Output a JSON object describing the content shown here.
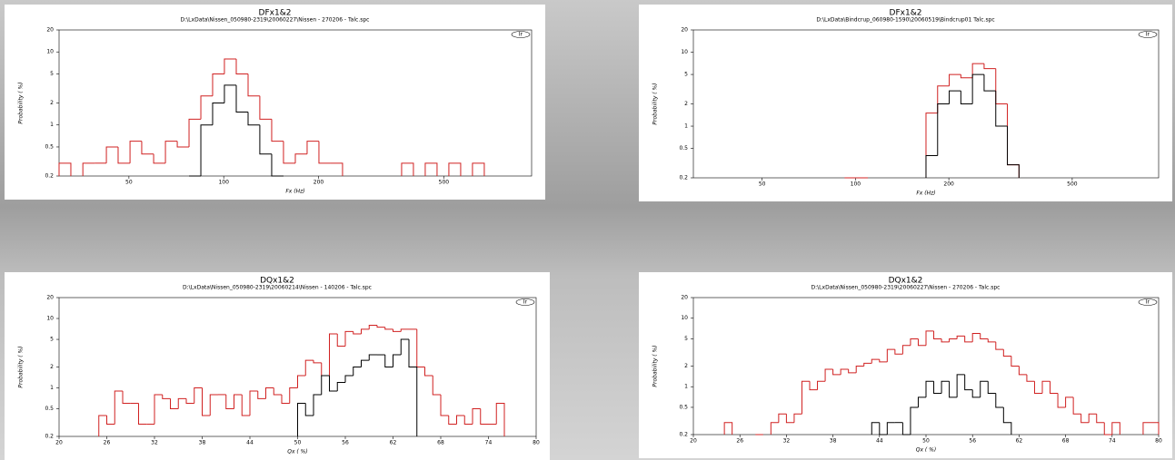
{
  "chart_data": [
    {
      "type": "histogram",
      "title": "DFx1&2",
      "subtitle": "D:\\LxData\\Nissen_050980-2319\\20060227\\Nissen - 270206 - Talc.spc",
      "badge": "Ir",
      "xlabel": "Fx (Hz)",
      "ylabel": "Probability ( %)",
      "xscale": "log",
      "yscale": "log",
      "xlim": [
        30,
        950
      ],
      "ylim": [
        0.2,
        20
      ],
      "xticks": [
        50,
        100,
        200,
        500
      ],
      "yticks": [
        0.2,
        0.5,
        1,
        2,
        5,
        10,
        20
      ],
      "bins": [
        30,
        32.7,
        35.7,
        38.9,
        42.4,
        46.2,
        50.4,
        54.9,
        59.9,
        65.3,
        71.2,
        77.6,
        84.6,
        92.2,
        100.5,
        109.6,
        119.5,
        130.2,
        142,
        154.8,
        168.8,
        184,
        200.6,
        218.7,
        238.4,
        259.9,
        283.4,
        308.9,
        336.8,
        367.2,
        400.3,
        436.4,
        475.8,
        518.7,
        565.5,
        616.5,
        672.1,
        732.7,
        798.8,
        870.9,
        949.4
      ],
      "series": [
        {
          "color": "#d02020",
          "values": [
            0.3,
            null,
            0.3,
            0.3,
            0.5,
            0.3,
            0.6,
            0.4,
            0.3,
            0.6,
            0.5,
            1.2,
            2.5,
            5,
            8,
            5,
            2.5,
            1.2,
            0.6,
            0.3,
            0.4,
            0.6,
            0.3,
            0.3,
            null,
            null,
            null,
            null,
            null,
            0.3,
            null,
            0.3,
            null,
            0.3,
            null,
            0.3,
            null,
            null,
            null,
            null
          ]
        },
        {
          "color": "#000000",
          "values": [
            null,
            null,
            null,
            null,
            null,
            null,
            null,
            null,
            null,
            null,
            null,
            0.2,
            1,
            2,
            3.5,
            1.5,
            1,
            0.4,
            0.2,
            null,
            null,
            null,
            null,
            null,
            null,
            null,
            null,
            null,
            null,
            null,
            null,
            null,
            null,
            null,
            null,
            null,
            null,
            null,
            null,
            null
          ]
        }
      ]
    },
    {
      "type": "histogram",
      "title": "DFx1&2",
      "subtitle": "D:\\LxData\\Bindcrup_060980-1590\\20060519\\Bindcrup01 Talc.spc",
      "badge": "Ir",
      "xlabel": "Fx (Hz)",
      "ylabel": "Probability ( %)",
      "xscale": "log",
      "yscale": "log",
      "xlim": [
        30,
        950
      ],
      "ylim": [
        0.2,
        20
      ],
      "xticks": [
        50,
        100,
        200,
        500
      ],
      "yticks": [
        0.2,
        0.5,
        1,
        2,
        5,
        10,
        20
      ],
      "bins": [
        30,
        32.7,
        35.7,
        38.9,
        42.4,
        46.2,
        50.4,
        54.9,
        59.9,
        65.3,
        71.2,
        77.6,
        84.6,
        92.2,
        100.5,
        109.6,
        119.5,
        130.2,
        142,
        154.8,
        168.8,
        184,
        200.6,
        218.7,
        238.4,
        259.9,
        283.4,
        308.9,
        336.8,
        367.2,
        400.3,
        436.4,
        475.8,
        518.7,
        565.5,
        616.5,
        672.1,
        732.7,
        798.8,
        870.9,
        949.4
      ],
      "series": [
        {
          "color": "#d02020",
          "values": [
            null,
            null,
            null,
            null,
            null,
            null,
            null,
            null,
            null,
            null,
            null,
            null,
            null,
            0.2,
            0.2,
            null,
            null,
            null,
            null,
            null,
            1.5,
            3.5,
            5,
            4.5,
            7,
            6,
            2,
            0.3,
            null,
            null,
            null,
            null,
            null,
            null,
            null,
            null,
            null,
            null,
            null,
            null
          ]
        },
        {
          "color": "#000000",
          "values": [
            null,
            null,
            null,
            null,
            null,
            null,
            null,
            null,
            null,
            null,
            null,
            null,
            null,
            null,
            null,
            null,
            null,
            null,
            null,
            null,
            0.4,
            2,
            3,
            2,
            5,
            3,
            1,
            0.3,
            null,
            null,
            null,
            null,
            null,
            null,
            null,
            null,
            null,
            null,
            null,
            null
          ]
        }
      ]
    },
    {
      "type": "histogram",
      "title": "DQx1&2",
      "subtitle": "D:\\LxData\\Nissen_050980-2319\\20060214\\Nissen - 140206 - Talc.spc",
      "badge": "Ir",
      "xlabel": "Qx ( %)",
      "ylabel": "Probability ( %)",
      "xscale": "linear",
      "yscale": "log",
      "xlim": [
        20,
        80
      ],
      "ylim": [
        0.2,
        20
      ],
      "xticks": [
        20,
        26,
        32,
        38,
        44,
        50,
        56,
        62,
        68,
        74,
        80
      ],
      "yticks": [
        0.2,
        0.5,
        1,
        2,
        5,
        10,
        20
      ],
      "bins": [
        20,
        21,
        22,
        23,
        24,
        25,
        26,
        27,
        28,
        29,
        30,
        31,
        32,
        33,
        34,
        35,
        36,
        37,
        38,
        39,
        40,
        41,
        42,
        43,
        44,
        45,
        46,
        47,
        48,
        49,
        50,
        51,
        52,
        53,
        54,
        55,
        56,
        57,
        58,
        59,
        60,
        61,
        62,
        63,
        64,
        65,
        66,
        67,
        68,
        69,
        70,
        71,
        72,
        73,
        74,
        75,
        76,
        77,
        78,
        79,
        80
      ],
      "series": [
        {
          "color": "#d02020",
          "values": [
            null,
            null,
            null,
            null,
            null,
            0.4,
            0.3,
            0.9,
            0.6,
            0.6,
            0.3,
            0.3,
            0.8,
            0.7,
            0.5,
            0.7,
            0.6,
            1,
            0.4,
            0.8,
            0.8,
            0.5,
            0.8,
            0.4,
            0.9,
            0.7,
            1,
            0.8,
            0.6,
            1,
            1.5,
            2.5,
            2.3,
            1.5,
            6,
            4,
            6.5,
            6,
            7,
            8,
            7.5,
            7,
            6.5,
            7,
            7,
            2,
            1.5,
            0.8,
            0.4,
            0.3,
            0.4,
            0.3,
            0.5,
            0.3,
            0.3,
            0.6,
            null,
            null,
            null,
            null
          ]
        },
        {
          "color": "#000000",
          "values": [
            null,
            null,
            null,
            null,
            null,
            null,
            null,
            null,
            null,
            null,
            null,
            null,
            null,
            null,
            null,
            null,
            null,
            null,
            null,
            null,
            null,
            null,
            null,
            null,
            null,
            null,
            null,
            null,
            null,
            null,
            0.6,
            0.4,
            0.8,
            1.5,
            0.9,
            1.2,
            1.5,
            2,
            2.5,
            3,
            3,
            2,
            3,
            5,
            2,
            null,
            null,
            null,
            null,
            null,
            null,
            null,
            null,
            null,
            null,
            null,
            null,
            null,
            null,
            null
          ]
        }
      ]
    },
    {
      "type": "histogram",
      "title": "DQx1&2",
      "subtitle": "D:\\LxData\\Nissen_050980-2319\\20060227\\Nissen - 270206 - Talc.spc",
      "badge": "Ir",
      "xlabel": "Qx ( %)",
      "ylabel": "Probability ( %)",
      "xscale": "linear",
      "yscale": "log",
      "xlim": [
        20,
        80
      ],
      "ylim": [
        0.2,
        20
      ],
      "xticks": [
        20,
        26,
        32,
        38,
        44,
        50,
        56,
        62,
        68,
        74,
        80
      ],
      "yticks": [
        0.2,
        0.5,
        1,
        2,
        5,
        10,
        20
      ],
      "bins": [
        20,
        21,
        22,
        23,
        24,
        25,
        26,
        27,
        28,
        29,
        30,
        31,
        32,
        33,
        34,
        35,
        36,
        37,
        38,
        39,
        40,
        41,
        42,
        43,
        44,
        45,
        46,
        47,
        48,
        49,
        50,
        51,
        52,
        53,
        54,
        55,
        56,
        57,
        58,
        59,
        60,
        61,
        62,
        63,
        64,
        65,
        66,
        67,
        68,
        69,
        70,
        71,
        72,
        73,
        74,
        75,
        76,
        77,
        78,
        79,
        80
      ],
      "series": [
        {
          "color": "#d02020",
          "values": [
            null,
            null,
            null,
            null,
            0.3,
            null,
            null,
            null,
            0.2,
            null,
            0.3,
            0.4,
            0.3,
            0.4,
            1.2,
            0.9,
            1.2,
            1.8,
            1.5,
            1.8,
            1.6,
            2,
            2.2,
            2.5,
            2.3,
            3.5,
            3,
            4,
            5,
            4,
            6.5,
            5,
            4.5,
            5,
            5.5,
            4.5,
            6,
            5,
            4.5,
            3.5,
            2.8,
            2,
            1.5,
            1.2,
            0.8,
            1.2,
            0.8,
            0.5,
            0.7,
            0.4,
            0.3,
            0.4,
            0.3,
            0.2,
            0.3,
            null,
            null,
            null,
            0.3,
            0.3
          ]
        },
        {
          "color": "#000000",
          "values": [
            null,
            null,
            null,
            null,
            null,
            null,
            null,
            null,
            null,
            null,
            null,
            null,
            null,
            null,
            null,
            null,
            null,
            null,
            null,
            null,
            null,
            null,
            null,
            0.3,
            0.2,
            0.3,
            0.3,
            0.2,
            0.5,
            0.7,
            1.2,
            0.8,
            1.2,
            0.7,
            1.5,
            0.9,
            0.7,
            1.2,
            0.8,
            0.5,
            0.3,
            null,
            null,
            null,
            null,
            null,
            null,
            null,
            null,
            null,
            null,
            null,
            null,
            null,
            null,
            null,
            null,
            null,
            null,
            null
          ]
        }
      ]
    }
  ]
}
